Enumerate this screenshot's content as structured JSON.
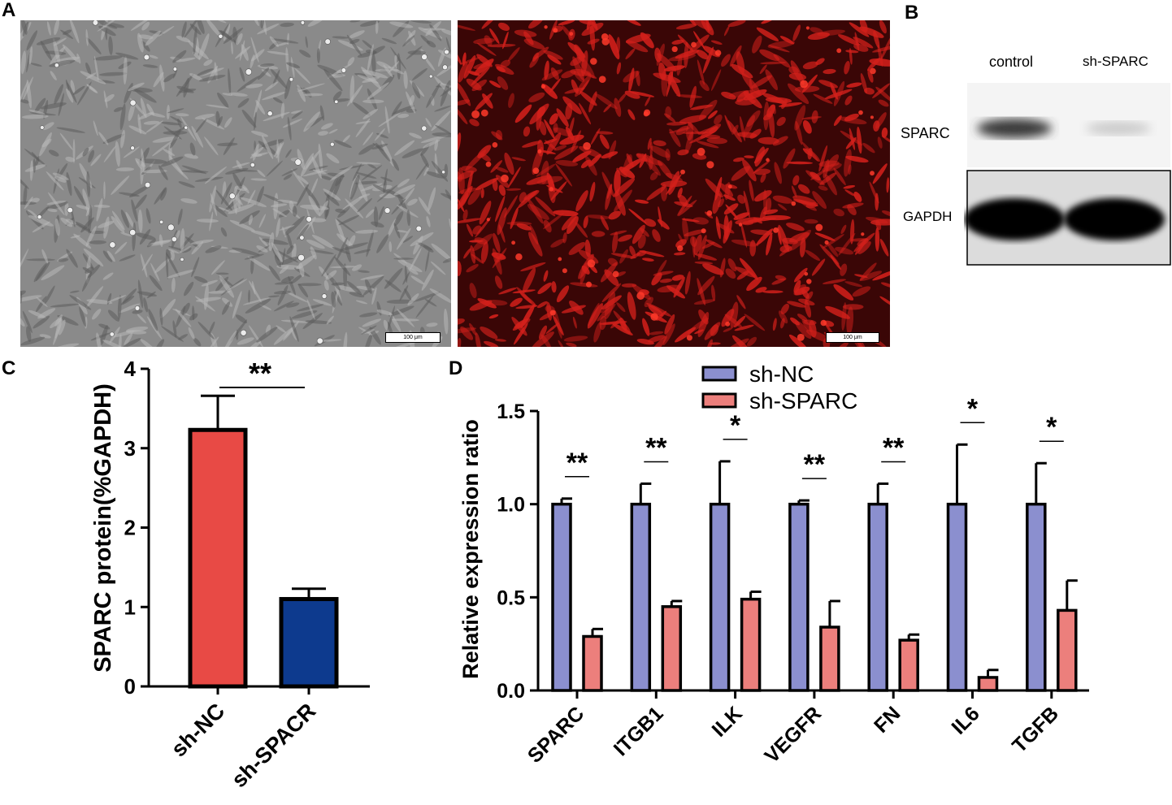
{
  "panels": {
    "A": {
      "label": "A",
      "scale_bar_left": "100 μm",
      "scale_bar_right": "100 μm",
      "colors": {
        "phase_contrast_bg": "#8a8a8a",
        "fluorescence_bg": "#3a0606",
        "cell_red": "#d3201b"
      }
    },
    "B": {
      "label": "B",
      "lanes": [
        "control",
        "sh-SPARC"
      ],
      "rows": [
        "SPARC",
        "GAPDH"
      ]
    },
    "C": {
      "label": "C"
    },
    "D": {
      "label": "D"
    }
  },
  "chart_data": [
    {
      "panel": "C",
      "type": "bar",
      "categories": [
        "sh-NC",
        "sh-SPACR"
      ],
      "values": [
        3.23,
        1.1
      ],
      "errors": [
        0.43,
        0.13
      ],
      "colors": [
        "#e84a45",
        "#0d3a8e"
      ],
      "ylabel": "SPARC protein(%GAPDH)",
      "ylim": [
        0,
        4
      ],
      "yticks": [
        "0",
        "1",
        "2",
        "3",
        "4"
      ],
      "annotations": [
        {
          "text": "**",
          "between": [
            0,
            1
          ]
        }
      ]
    },
    {
      "panel": "D",
      "type": "bar",
      "categories": [
        "SPARC",
        "ITGB1",
        "ILK",
        "VEGFR",
        "FN",
        "IL6",
        "TGFB"
      ],
      "series": [
        {
          "name": "sh-NC",
          "color": "#8b8fcf",
          "values": [
            1.0,
            1.0,
            1.0,
            1.0,
            1.0,
            1.0,
            1.0
          ],
          "errors": [
            0.03,
            0.11,
            0.23,
            0.02,
            0.11,
            0.32,
            0.22
          ]
        },
        {
          "name": "sh-SPARC",
          "color": "#ec7f7c",
          "values": [
            0.29,
            0.45,
            0.49,
            0.34,
            0.27,
            0.07,
            0.43
          ],
          "errors": [
            0.04,
            0.03,
            0.04,
            0.14,
            0.03,
            0.04,
            0.16
          ]
        }
      ],
      "ylabel": "Relative expression ratio",
      "ylim": [
        0,
        1.5
      ],
      "yticks": [
        "0.0",
        "0.5",
        "1.0",
        "1.5"
      ],
      "significance": [
        "**",
        "**",
        "*",
        "**",
        "**",
        "*",
        "*"
      ],
      "legend": "top"
    }
  ]
}
